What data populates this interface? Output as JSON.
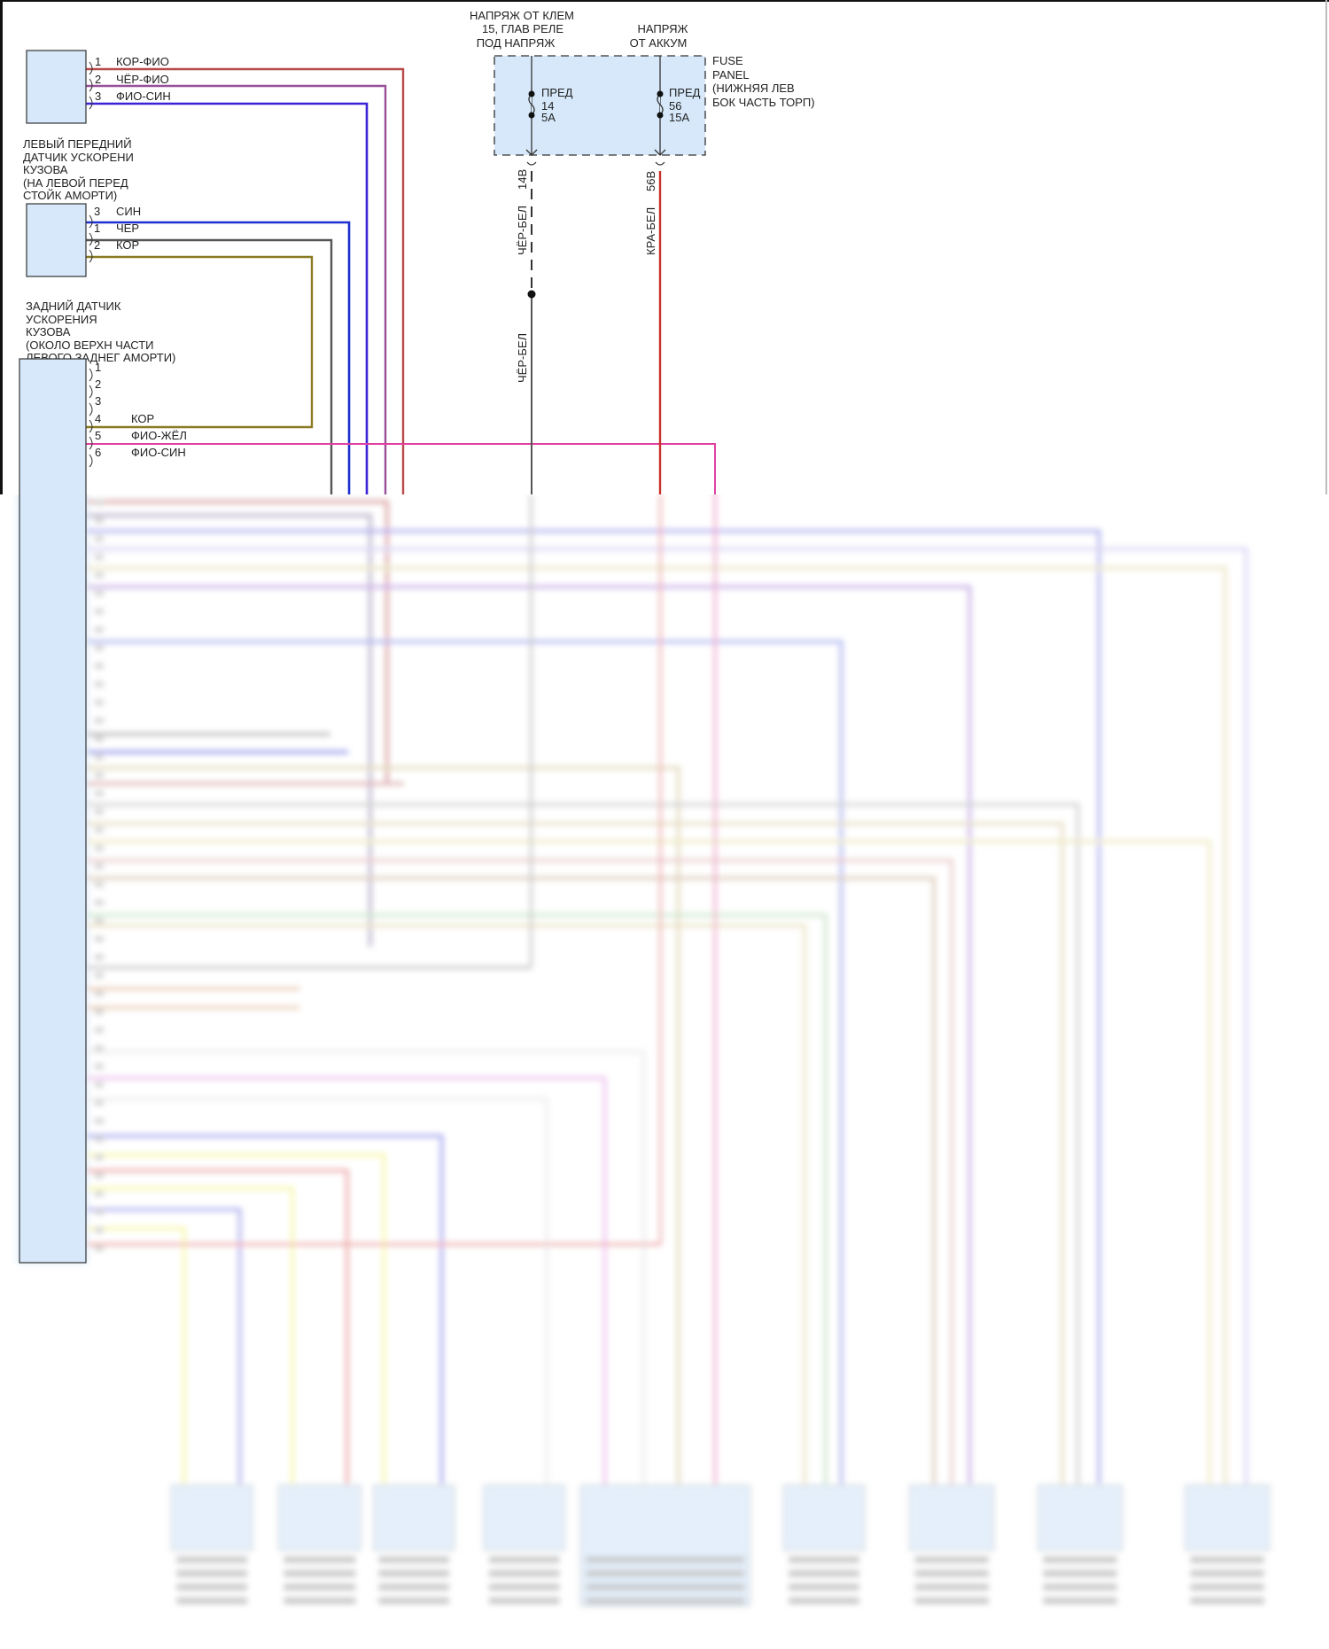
{
  "left_front_sensor": {
    "label_lines": [
      "ЛЕВЫЙ ПЕРЕДНИЙ",
      "ДАТЧИК УСКОРЕНИ",
      "КУЗОВА",
      "(НА ЛЕВОЙ ПЕРЕД",
      "СТОЙК АМОРТИ)"
    ],
    "pins": [
      {
        "num": "1",
        "wire": "КОР-ФИО",
        "color": "#b84a4a"
      },
      {
        "num": "2",
        "wire": "ЧЁР-ФИО",
        "color": "#9a4f9a"
      },
      {
        "num": "3",
        "wire": "ФИО-СИН",
        "color": "#3a22d6"
      }
    ]
  },
  "rear_sensor": {
    "label_lines": [
      "ЗАДНИЙ ДАТЧИК",
      "УСКОРЕНИЯ",
      "КУЗОВА",
      "(ОКОЛО ВЕРХН ЧАСТИ",
      "ЛЕВОГО ЗАДНЕГ АМОРТИ)"
    ],
    "pins": [
      {
        "num": "3",
        "wire": "СИН",
        "color": "#1c2fd0"
      },
      {
        "num": "1",
        "wire": "ЧЕР",
        "color": "#555555"
      },
      {
        "num": "2",
        "wire": "КОР",
        "color": "#8a7a22"
      }
    ]
  },
  "control_module": {
    "pins": [
      {
        "num": "1",
        "wire": ""
      },
      {
        "num": "2",
        "wire": ""
      },
      {
        "num": "3",
        "wire": ""
      },
      {
        "num": "4",
        "wire": "КОР"
      },
      {
        "num": "5",
        "wire": "ФИО-ЖЁЛ"
      },
      {
        "num": "6",
        "wire": "ФИО-СИН"
      }
    ]
  },
  "fuse_panel": {
    "label_lines": [
      "FUSE",
      "PANEL",
      "(НИЖНЯЯ ЛЕВ",
      "БОК ЧАСТЬ ТОРП)"
    ],
    "supply_left_lines": [
      "НАПРЯЖ ОТ КЛЕМ",
      "15, ГЛАВ РЕЛЕ",
      "ПОД НАПРЯЖ"
    ],
    "supply_right_lines": [
      "НАПРЯЖ",
      "ОТ АККУМ"
    ],
    "fuses": [
      {
        "name": "ПРЕД",
        "number": "14",
        "rating": "5A",
        "connector": "14B",
        "wire": "ЧЁР-БЕЛ",
        "wire2": "ЧЁР-БЕЛ"
      },
      {
        "name": "ПРЕД",
        "number": "56",
        "rating": "15A",
        "connector": "56B",
        "wire": "КРА-БЕЛ"
      }
    ]
  },
  "colors": {
    "component_fill": "#d6e8fa",
    "battery_wire": "#c8322a",
    "pink_wire": "#e040a0"
  }
}
